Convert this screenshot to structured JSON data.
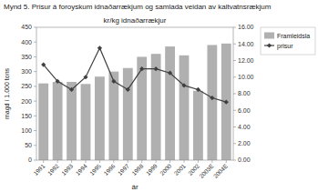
{
  "chart_data": {
    "type": "bar",
    "title": "Mynd 5. Prisur á foroyskum idnaðarrækjum og samlada veidan av kaltvatnsrækjum",
    "subtitle": "kr/kg idnaðarrækjur",
    "xlabel": "ár",
    "ylabel": "magd í 1.000 tons",
    "categories": [
      "1991",
      "1992",
      "1993",
      "1994",
      "1995",
      "1996",
      "1997",
      "1998",
      "1999",
      "2000",
      "2001",
      "2002",
      "2003E",
      "2004E"
    ],
    "series": [
      {
        "name": "Framleidsla",
        "type": "bar",
        "color": "#b0b0b0",
        "values": [
          260,
          265,
          265,
          258,
          283,
          300,
          312,
          350,
          360,
          385,
          355,
          235,
          390,
          395
        ]
      },
      {
        "name": "prisur",
        "type": "line",
        "axis": "y2",
        "color": "#404040",
        "marker": "diamond",
        "line_style": "solid",
        "values": [
          11.5,
          9.5,
          8.5,
          10.0,
          13.5,
          9.5,
          8.5,
          11.0,
          11.0,
          10.5,
          9.0,
          8.5,
          7.5,
          7.0
        ]
      }
    ],
    "ylim": [
      0,
      450
    ],
    "yticks": [
      0,
      50,
      100,
      150,
      200,
      250,
      300,
      350,
      400,
      450
    ],
    "y2lim": [
      0,
      16
    ],
    "y2ticks": [
      {
        "value": 0,
        "label": "0.00"
      },
      {
        "value": 2,
        "label": "2.00"
      },
      {
        "value": 4,
        "label": "4.00"
      },
      {
        "value": 6,
        "label": "6.00"
      },
      {
        "value": 8,
        "label": "8.00"
      },
      {
        "value": 10,
        "label": "10.00"
      },
      {
        "value": 12,
        "label": "12.00"
      },
      {
        "value": 14,
        "label": "14.00"
      },
      {
        "value": 16,
        "label": "16.00"
      }
    ],
    "legend": "upper right",
    "grid": false
  }
}
